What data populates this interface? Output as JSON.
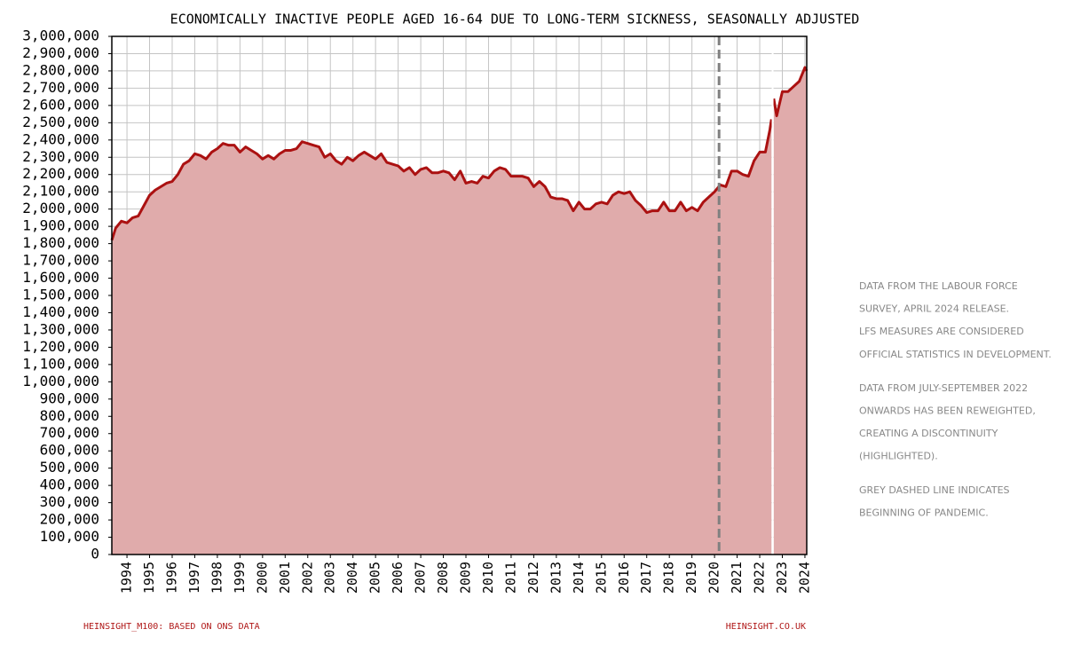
{
  "chart_data": {
    "type": "area",
    "title": "ECONOMICALLY INACTIVE PEOPLE AGED 16-64 DUE TO LONG-TERM SICKNESS, SEASONALLY ADJUSTED",
    "color": "#ab1111",
    "fill": "#e0abab",
    "grid": true,
    "x": [
      1993.33,
      1993.5,
      1993.75,
      1994.0,
      1994.25,
      1994.5,
      1994.75,
      1995.0,
      1995.25,
      1995.5,
      1995.75,
      1996.0,
      1996.25,
      1996.5,
      1996.75,
      1997.0,
      1997.25,
      1997.5,
      1997.75,
      1998.0,
      1998.25,
      1998.5,
      1998.75,
      1999.0,
      1999.25,
      1999.5,
      1999.75,
      2000.0,
      2000.25,
      2000.5,
      2000.75,
      2001.0,
      2001.25,
      2001.5,
      2001.75,
      2002.0,
      2002.25,
      2002.5,
      2002.75,
      2003.0,
      2003.25,
      2003.5,
      2003.75,
      2004.0,
      2004.25,
      2004.5,
      2004.75,
      2005.0,
      2005.25,
      2005.5,
      2005.75,
      2006.0,
      2006.25,
      2006.5,
      2006.75,
      2007.0,
      2007.25,
      2007.5,
      2007.75,
      2008.0,
      2008.25,
      2008.5,
      2008.75,
      2009.0,
      2009.25,
      2009.5,
      2009.75,
      2010.0,
      2010.25,
      2010.5,
      2010.75,
      2011.0,
      2011.25,
      2011.5,
      2011.75,
      2012.0,
      2012.25,
      2012.5,
      2012.75,
      2013.0,
      2013.25,
      2013.5,
      2013.75,
      2014.0,
      2014.25,
      2014.5,
      2014.75,
      2015.0,
      2015.25,
      2015.5,
      2015.75,
      2016.0,
      2016.25,
      2016.5,
      2016.75,
      2017.0,
      2017.25,
      2017.5,
      2017.75,
      2018.0,
      2018.25,
      2018.5,
      2018.75,
      2019.0,
      2019.25,
      2019.5,
      2019.75,
      2020.0,
      2020.25,
      2020.5,
      2020.75,
      2021.0,
      2021.25,
      2021.5,
      2021.75,
      2022.0,
      2022.25,
      2022.45,
      2022.52,
      2022.57,
      2022.62,
      2022.75,
      2023.0,
      2023.25,
      2023.5,
      2023.75,
      2024.0,
      2024.08
    ],
    "values": [
      1820000,
      1890000,
      1930000,
      1920000,
      1950000,
      1960000,
      2020000,
      2080000,
      2110000,
      2130000,
      2150000,
      2160000,
      2200000,
      2260000,
      2280000,
      2320000,
      2310000,
      2290000,
      2330000,
      2350000,
      2380000,
      2370000,
      2370000,
      2330000,
      2360000,
      2340000,
      2320000,
      2290000,
      2310000,
      2290000,
      2320000,
      2340000,
      2340000,
      2350000,
      2390000,
      2380000,
      2370000,
      2360000,
      2300000,
      2320000,
      2280000,
      2260000,
      2300000,
      2280000,
      2310000,
      2330000,
      2310000,
      2290000,
      2320000,
      2270000,
      2260000,
      2250000,
      2220000,
      2240000,
      2200000,
      2230000,
      2240000,
      2210000,
      2210000,
      2220000,
      2210000,
      2170000,
      2220000,
      2150000,
      2160000,
      2150000,
      2190000,
      2180000,
      2220000,
      2240000,
      2230000,
      2190000,
      2190000,
      2190000,
      2180000,
      2130000,
      2160000,
      2130000,
      2070000,
      2060000,
      2060000,
      2050000,
      1990000,
      2040000,
      2000000,
      2000000,
      2030000,
      2040000,
      2030000,
      2080000,
      2100000,
      2090000,
      2100000,
      2050000,
      2020000,
      1980000,
      1990000,
      1990000,
      2040000,
      1990000,
      1990000,
      2040000,
      1990000,
      2010000,
      1990000,
      2040000,
      2070000,
      2100000,
      2140000,
      2130000,
      2220000,
      2220000,
      2200000,
      2190000,
      2280000,
      2330000,
      2330000,
      2460000,
      2520000,
      null,
      2640000,
      2540000,
      2680000,
      2680000,
      2710000,
      2740000,
      2820000,
      2800000
    ],
    "xlim": [
      1993.33,
      2024.08
    ],
    "xticks": [
      1994,
      1995,
      1996,
      1997,
      1998,
      1999,
      2000,
      2001,
      2002,
      2003,
      2004,
      2005,
      2006,
      2007,
      2008,
      2009,
      2010,
      2011,
      2012,
      2013,
      2014,
      2015,
      2016,
      2017,
      2018,
      2019,
      2020,
      2021,
      2022,
      2023,
      2024
    ],
    "ylim": [
      0,
      3000000
    ],
    "yticks": [
      0,
      {
        "value": 100000,
        "label": "100,000"
      },
      {
        "value": 200000,
        "label": "200,000"
      },
      {
        "value": 300000,
        "label": "300,000"
      },
      {
        "value": 400000,
        "label": "400,000"
      },
      {
        "value": 500000,
        "label": "500,000"
      },
      {
        "value": 600000,
        "label": "600,000"
      },
      {
        "value": 700000,
        "label": "700,000"
      },
      {
        "value": 800000,
        "label": "800,000"
      },
      {
        "value": 900000,
        "label": "900,000"
      },
      {
        "value": 1000000,
        "label": "1,000,000"
      },
      {
        "value": 1100000,
        "label": "1,100,000"
      },
      {
        "value": 1200000,
        "label": "1,200,000"
      },
      {
        "value": 1300000,
        "label": "1,300,000"
      },
      {
        "value": 1400000,
        "label": "1,400,000"
      },
      {
        "value": 1500000,
        "label": "1,500,000"
      },
      {
        "value": 1600000,
        "label": "1,600,000"
      },
      {
        "value": 1700000,
        "label": "1,700,000"
      },
      {
        "value": 1800000,
        "label": "1,800,000"
      },
      {
        "value": 1900000,
        "label": "1,900,000"
      },
      {
        "value": 2000000,
        "label": "2,000,000"
      },
      {
        "value": 2100000,
        "label": "2,100,000"
      },
      {
        "value": 2200000,
        "label": "2,200,000"
      },
      {
        "value": 2300000,
        "label": "2,300,000"
      },
      {
        "value": 2400000,
        "label": "2,400,000"
      },
      {
        "value": 2500000,
        "label": "2,500,000"
      },
      {
        "value": 2600000,
        "label": "2,600,000"
      },
      {
        "value": 2700000,
        "label": "2,700,000"
      },
      {
        "value": 2800000,
        "label": "2,800,000"
      },
      {
        "value": 2900000,
        "label": "2,900,000"
      },
      {
        "value": 3000000,
        "label": "3,000,000"
      }
    ],
    "vlines": [
      {
        "x": 2020.2,
        "color": "#808080",
        "dashed": true
      },
      {
        "x": 2022.57,
        "color": "#ffffff",
        "dashed": false
      }
    ],
    "notes": [
      [
        "DATA FROM THE LABOUR FORCE",
        "SURVEY, APRIL 2024 RELEASE.",
        "LFS MEASURES ARE CONSIDERED",
        "OFFICIAL STATISTICS IN DEVELOPMENT."
      ],
      [
        "DATA FROM JULY-SEPTEMBER 2022",
        "ONWARDS HAS BEEN REWEIGHTED,",
        "CREATING A DISCONTINUITY",
        "(HIGHLIGHTED)."
      ],
      [
        "GREY DASHED LINE INDICATES",
        "BEGINNING OF PANDEMIC."
      ]
    ],
    "source": "HEINSIGHT_M100: BASED ON ONS DATA",
    "website": "HEINSIGHT.CO.UK"
  }
}
